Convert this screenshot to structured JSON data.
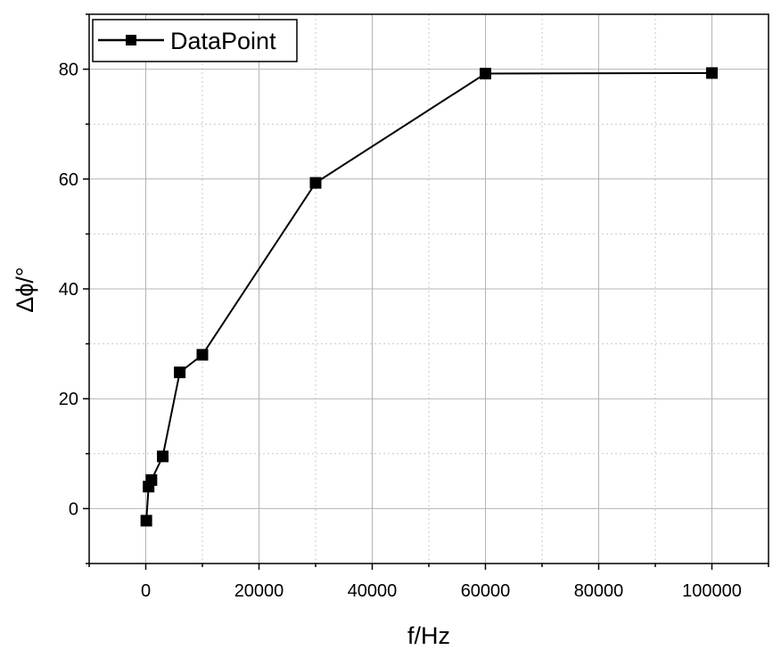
{
  "chart_data": {
    "type": "line",
    "title": "",
    "xlabel": "f/Hz",
    "ylabel": "Δϕ/°",
    "xlim": [
      -10000,
      110000
    ],
    "ylim": [
      -10,
      90
    ],
    "xticks": [
      0,
      20000,
      40000,
      60000,
      80000,
      100000
    ],
    "yticks": [
      0,
      20,
      40,
      60,
      80
    ],
    "grid": true,
    "legend_position": "top-left",
    "series": [
      {
        "name": "DataPoint",
        "marker": "square",
        "color": "#000000",
        "x": [
          100,
          500,
          1000,
          3000,
          6000,
          10000,
          30000,
          60000,
          100000
        ],
        "y": [
          -2.2,
          4.0,
          5.2,
          9.5,
          24.8,
          28.0,
          59.3,
          79.2,
          79.3
        ]
      }
    ]
  }
}
